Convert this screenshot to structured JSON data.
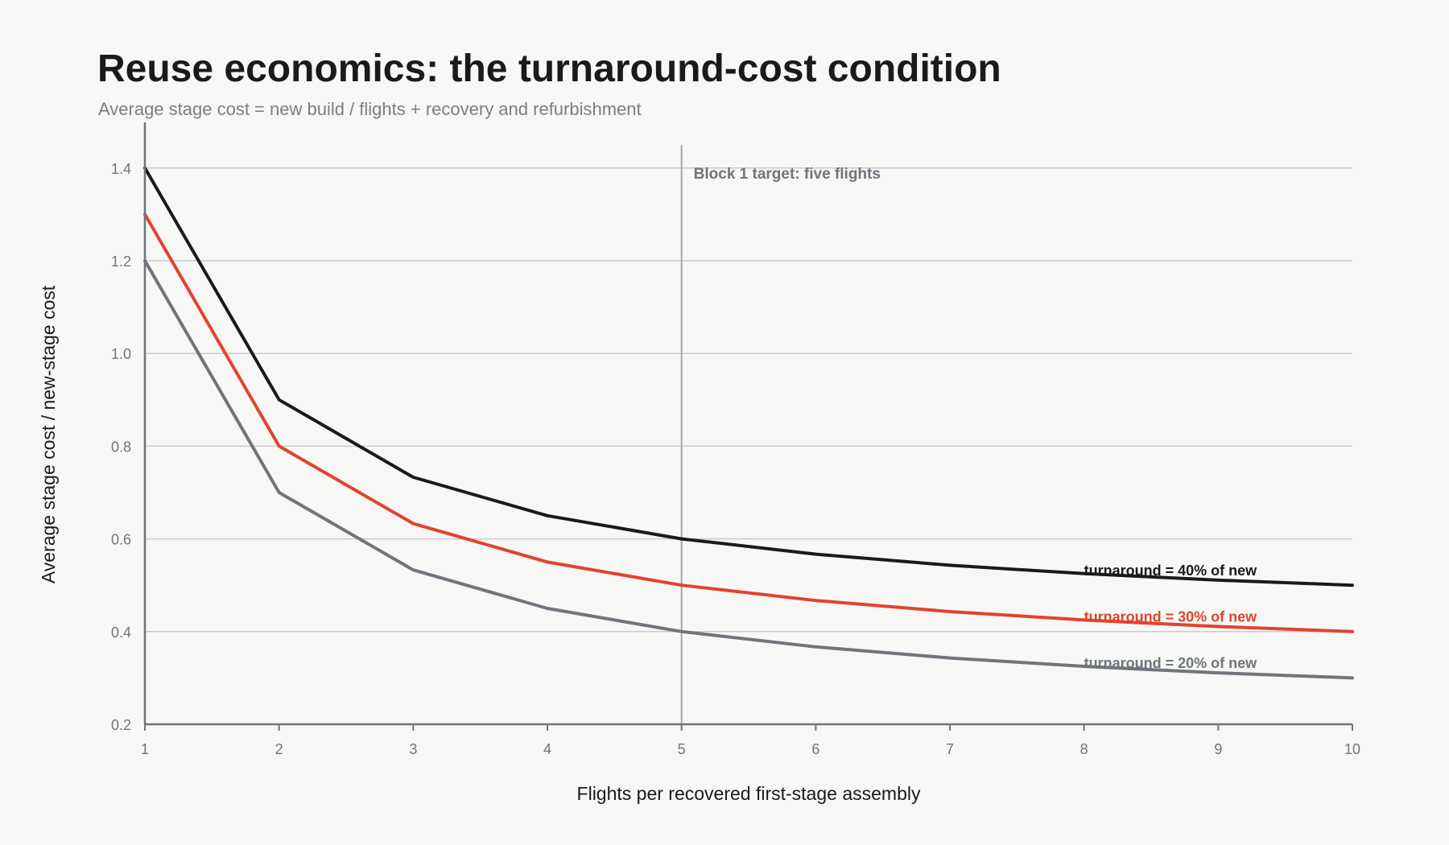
{
  "chart_data": {
    "type": "line",
    "title": "Reuse economics: the turnaround-cost condition",
    "subtitle": "Average stage cost = new build / flights + recovery and refurbishment",
    "xlabel": "Flights per recovered first-stage assembly",
    "ylabel": "Average stage cost / new-stage cost",
    "xlim": [
      1,
      10
    ],
    "ylim": [
      0.2,
      1.45
    ],
    "xticks": [
      1,
      2,
      3,
      4,
      5,
      6,
      7,
      8,
      9,
      10
    ],
    "yticks": [
      0.2,
      0.4,
      0.6,
      0.8,
      1.0,
      1.2,
      1.4
    ],
    "ytick_labels": [
      "0.2",
      "0.4",
      "0.6",
      "0.8",
      "1.0",
      "1.2",
      "1.4"
    ],
    "grid": "horizontal",
    "x": [
      1,
      2,
      3,
      4,
      5,
      6,
      7,
      8,
      9,
      10
    ],
    "series": [
      {
        "label": "turnaround = 40% of new",
        "color": "#1a1a1a",
        "values": [
          1.4,
          0.9,
          0.733,
          0.65,
          0.6,
          0.567,
          0.543,
          0.525,
          0.511,
          0.5
        ]
      },
      {
        "label": "turnaround = 30% of new",
        "color": "#e0442d",
        "values": [
          1.3,
          0.8,
          0.633,
          0.55,
          0.5,
          0.467,
          0.443,
          0.425,
          0.411,
          0.4
        ]
      },
      {
        "label": "turnaround = 20% of new",
        "color": "#6f757b",
        "values": [
          1.2,
          0.7,
          0.533,
          0.45,
          0.4,
          0.367,
          0.343,
          0.325,
          0.311,
          0.3
        ]
      }
    ],
    "annotations": [
      {
        "type": "vline",
        "x": 5,
        "text": "Block 1 target: five flights",
        "color": "#a3a8ae"
      }
    ],
    "series_label_x": 8
  }
}
